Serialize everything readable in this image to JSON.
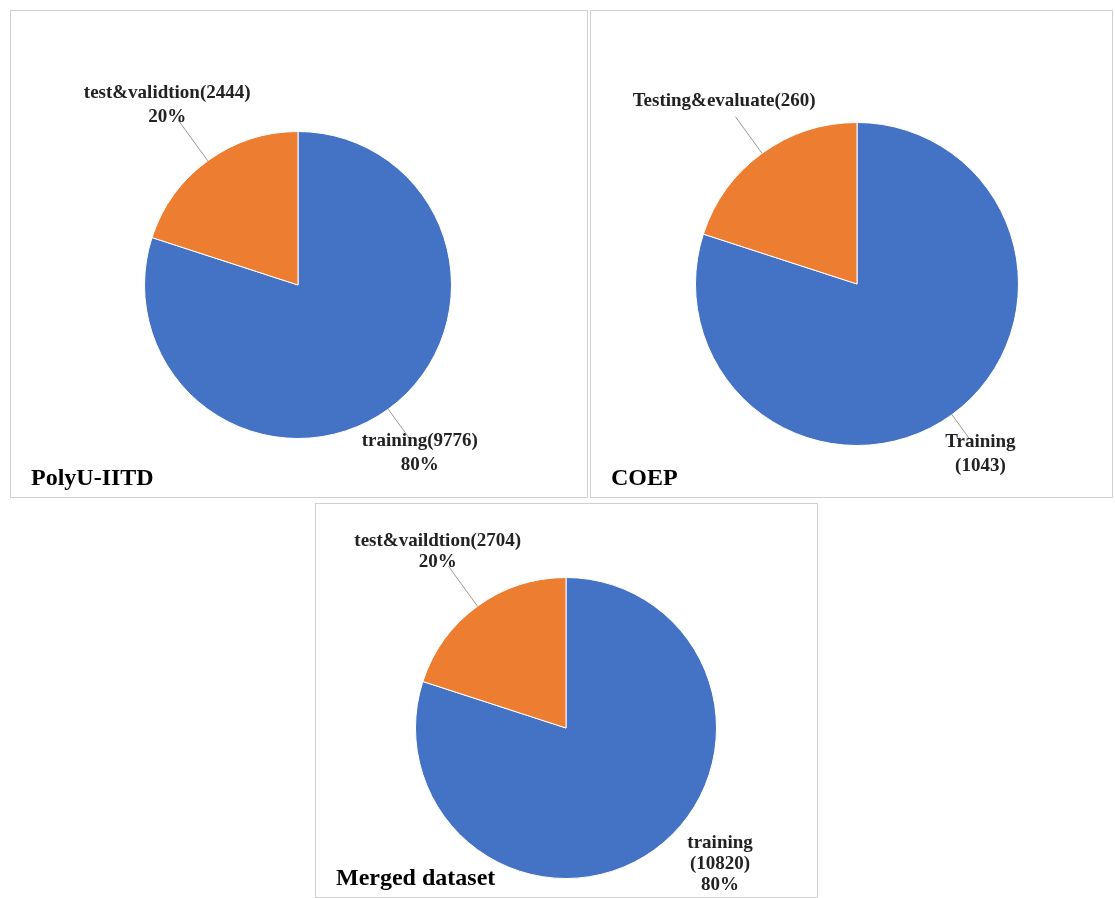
{
  "chart_data": [
    {
      "type": "pie",
      "title": "PolyU-IITD",
      "categories": [
        "training(9776)",
        "test&validtion(2444)"
      ],
      "values": [
        80,
        20
      ],
      "value_labels": [
        "80%",
        "20%"
      ],
      "colors": [
        "#4472c4",
        "#ed7d31"
      ],
      "legend": false
    },
    {
      "type": "pie",
      "title": "COEP",
      "categories": [
        "Training\n(1043)",
        "Testing&evaluate(260)"
      ],
      "values": [
        80,
        20
      ],
      "colors": [
        "#4472c4",
        "#ed7d31"
      ],
      "legend": false
    },
    {
      "type": "pie",
      "title": "Merged dataset",
      "categories": [
        "training\n(10820)",
        "test&vaildtion(2704)"
      ],
      "values": [
        80,
        20
      ],
      "value_labels": [
        "80%",
        "20%"
      ],
      "colors": [
        "#4472c4",
        "#ed7d31"
      ],
      "legend": false
    }
  ]
}
